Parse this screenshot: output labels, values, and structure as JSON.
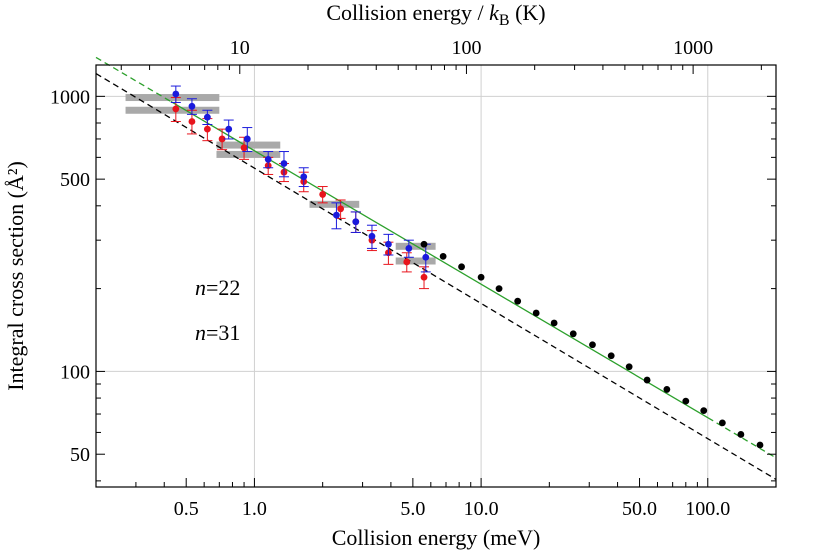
{
  "chart_data": {
    "type": "scatter",
    "xscale": "log",
    "yscale": "log",
    "xlim": [
      0.2,
      200
    ],
    "ylim": [
      38,
      1300
    ],
    "grid": true,
    "xlabel": "Collision energy (meV)",
    "ylabel": "Integral cross section (Å²)",
    "top_axis": {
      "label_prefix": "Collision energy / ",
      "label_k": "k",
      "label_sub": "B",
      "label_suffix": " (K)",
      "ticks": [
        10,
        100,
        1000
      ],
      "tick_labels": [
        "10",
        "100",
        "1000"
      ],
      "mev_per_kelvin": 0.08617
    },
    "x_ticks": [
      0.5,
      1.0,
      5.0,
      10.0,
      50.0,
      100.0
    ],
    "x_tick_labels": [
      "0.5",
      "1.0",
      "5.0",
      "10.0",
      "50.0",
      "100.0"
    ],
    "y_ticks": [
      50,
      100,
      500,
      1000
    ],
    "y_tick_labels": [
      "50",
      "100",
      "500",
      "1000"
    ],
    "annotations": [
      {
        "text_italic": "n",
        "text": "=22",
        "color": "#e8141c"
      },
      {
        "text_italic": "n",
        "text": "=31",
        "color": "#1a1adc"
      }
    ],
    "colors": {
      "red": "#e8141c",
      "blue": "#1a1adc",
      "black": "#000000",
      "green": "#2ca02c",
      "band": "#a9a9a9",
      "grid": "#d0d0d0"
    },
    "series": [
      {
        "name": "n=22",
        "color": "#e8141c",
        "x": [
          0.45,
          0.53,
          0.62,
          0.72,
          0.9,
          1.15,
          1.35,
          1.65,
          2.0,
          2.4,
          2.8,
          3.3,
          3.9,
          4.7,
          5.6
        ],
        "y": [
          900,
          810,
          760,
          700,
          650,
          560,
          530,
          490,
          440,
          390,
          350,
          300,
          270,
          250,
          220
        ],
        "yerr": [
          90,
          80,
          70,
          60,
          60,
          40,
          40,
          40,
          30,
          30,
          30,
          25,
          25,
          20,
          20
        ]
      },
      {
        "name": "n=31",
        "color": "#1a1adc",
        "x": [
          0.45,
          0.53,
          0.62,
          0.77,
          0.93,
          1.15,
          1.35,
          1.65,
          2.3,
          2.8,
          3.3,
          3.9,
          4.8,
          5.7
        ],
        "y": [
          1020,
          920,
          840,
          760,
          700,
          590,
          570,
          510,
          370,
          350,
          310,
          290,
          280,
          260
        ],
        "yerr": [
          70,
          60,
          50,
          60,
          70,
          40,
          60,
          40,
          40,
          30,
          30,
          25,
          20,
          30
        ]
      },
      {
        "name": "black",
        "color": "#000000",
        "x": [
          5.6,
          6.8,
          8.2,
          10.0,
          12.0,
          14.5,
          17.5,
          21.0,
          25.5,
          31.0,
          37.5,
          45.0,
          54.0,
          66.0,
          80.0,
          96.0,
          116.0,
          140.0,
          170.0
        ],
        "y": [
          290,
          262,
          240,
          220,
          200,
          180,
          163,
          150,
          137,
          125,
          114,
          104,
          93,
          86,
          78,
          72,
          65,
          59,
          54
        ]
      }
    ],
    "bands": [
      {
        "x": [
          0.27,
          0.7
        ],
        "y": 990
      },
      {
        "x": [
          0.27,
          0.7
        ],
        "y": 890
      },
      {
        "x": [
          0.68,
          1.3
        ],
        "y": 665
      },
      {
        "x": [
          0.68,
          1.3
        ],
        "y": 615
      },
      {
        "x": [
          1.75,
          2.9
        ],
        "y": 405
      },
      {
        "x": [
          4.2,
          6.3
        ],
        "y": 285
      },
      {
        "x": [
          4.2,
          6.3
        ],
        "y": 252
      }
    ],
    "lines": [
      {
        "style": "dashed",
        "color": "#000000",
        "from": [
          0.2,
          1210
        ],
        "to": [
          200,
          40.5
        ]
      },
      {
        "style": "solid-dashed-ends",
        "color": "#2ca02c",
        "from": [
          0.2,
          1385
        ],
        "to": [
          200,
          48.5
        ]
      }
    ]
  }
}
